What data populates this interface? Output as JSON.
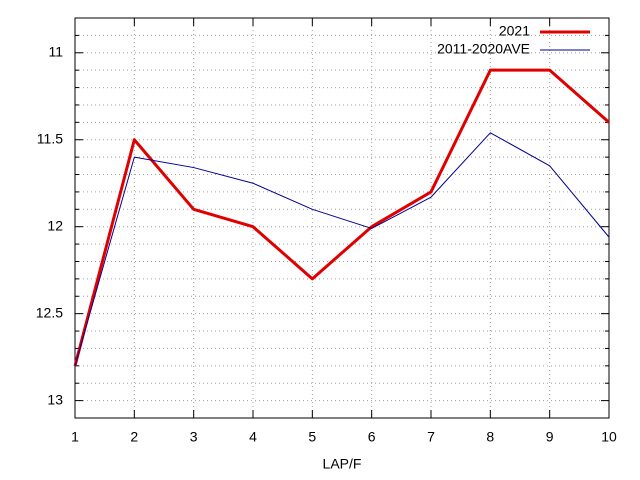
{
  "chart_data": {
    "type": "line",
    "x_label": "LAP/F",
    "x": [
      1,
      2,
      3,
      4,
      5,
      6,
      7,
      8,
      9,
      10
    ],
    "xlim": [
      1,
      10
    ],
    "xticks": [
      1,
      2,
      3,
      4,
      5,
      6,
      7,
      8,
      9,
      10
    ],
    "ylim": [
      13.1,
      10.8
    ],
    "yticks": [
      11,
      11.5,
      12,
      12.5,
      13
    ],
    "yminorticks": [
      10.9,
      11.1,
      11.2,
      11.3,
      11.4,
      11.6,
      11.7,
      11.8,
      11.9,
      12.1,
      12.2,
      12.3,
      12.4,
      12.6,
      12.7,
      12.8,
      12.9,
      13.1
    ],
    "grid": true,
    "legend": "top-right",
    "series": [
      {
        "name": "2021",
        "color": "#e00000",
        "width": 3,
        "values": [
          12.8,
          11.5,
          11.9,
          12.0,
          12.3,
          12.0,
          11.8,
          11.1,
          11.1,
          11.4
        ]
      },
      {
        "name": "2011-2020AVE",
        "color": "#000090",
        "width": 1,
        "values": [
          12.8,
          11.6,
          11.66,
          11.75,
          11.9,
          12.01,
          11.83,
          11.46,
          11.65,
          12.06
        ]
      }
    ]
  }
}
